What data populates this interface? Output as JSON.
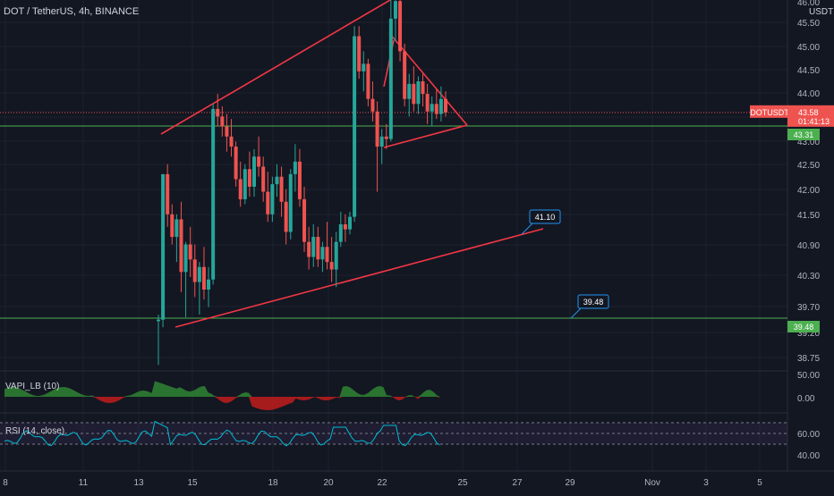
{
  "chart_data": {
    "type": "candlestick",
    "symbol_title": "DOT / TetherUS, 4h, BINANCE",
    "currency": "USDT",
    "y_ticks": [
      "46.00",
      "45.50",
      "45.00",
      "44.50",
      "44.00",
      "43.50",
      "43.00",
      "42.50",
      "42.00",
      "41.50",
      "40.90",
      "40.30",
      "39.70",
      "39.20",
      "38.75"
    ],
    "x_ticks": [
      "8",
      "11",
      "13",
      "15",
      "18",
      "20",
      "22",
      "25",
      "27",
      "29",
      "Nov",
      "3",
      "5"
    ],
    "price_tag": {
      "symbol": "DOTUSDT",
      "price": "43.58",
      "countdown": "01:41:13"
    },
    "hlines": [
      {
        "price": 43.31,
        "label": "43.31",
        "color": "#4caf50"
      },
      {
        "price": 39.48,
        "label": "39.48",
        "color": "#4caf50"
      }
    ],
    "callouts": [
      {
        "label": "41.10",
        "price": 41.1
      },
      {
        "label": "39.48",
        "price": 39.48
      }
    ],
    "trendlines_color": "#f23645",
    "candle_colors": {
      "up": "#26a69a",
      "down": "#ef5350"
    },
    "candles": [
      [
        39.42,
        39.55,
        38.55,
        39.45
      ],
      [
        39.45,
        42.35,
        39.3,
        42.35
      ],
      [
        42.35,
        42.55,
        41.3,
        41.55
      ],
      [
        41.55,
        41.75,
        40.95,
        41.1
      ],
      [
        41.1,
        41.55,
        40.6,
        41.45
      ],
      [
        41.45,
        41.8,
        40.0,
        40.4
      ],
      [
        40.4,
        41.0,
        39.5,
        40.95
      ],
      [
        40.95,
        41.3,
        40.3,
        40.65
      ],
      [
        40.65,
        40.95,
        39.9,
        40.2
      ],
      [
        40.2,
        40.6,
        39.55,
        40.5
      ],
      [
        40.5,
        40.9,
        39.85,
        40.05
      ],
      [
        40.05,
        40.5,
        39.7,
        40.25
      ],
      [
        40.25,
        43.75,
        40.15,
        43.65
      ],
      [
        43.65,
        43.95,
        43.3,
        43.5
      ],
      [
        43.5,
        43.7,
        43.1,
        43.3
      ],
      [
        43.3,
        43.55,
        42.8,
        43.1
      ],
      [
        43.1,
        43.45,
        42.7,
        42.9
      ],
      [
        42.9,
        43.0,
        42.1,
        42.25
      ],
      [
        42.25,
        42.6,
        41.7,
        41.85
      ],
      [
        41.85,
        42.55,
        41.75,
        42.45
      ],
      [
        42.45,
        42.8,
        41.9,
        42.1
      ],
      [
        42.1,
        42.85,
        41.9,
        42.7
      ],
      [
        42.7,
        43.1,
        42.3,
        42.5
      ],
      [
        42.5,
        42.7,
        41.8,
        42.0
      ],
      [
        42.0,
        42.4,
        41.4,
        41.55
      ],
      [
        41.55,
        42.3,
        41.4,
        42.15
      ],
      [
        42.15,
        42.55,
        41.9,
        42.3
      ],
      [
        42.3,
        42.5,
        41.5,
        41.8
      ],
      [
        41.8,
        42.05,
        40.95,
        41.2
      ],
      [
        41.2,
        42.45,
        41.05,
        42.35
      ],
      [
        42.35,
        42.95,
        42.0,
        42.6
      ],
      [
        42.6,
        42.85,
        41.7,
        41.85
      ],
      [
        41.85,
        42.1,
        40.8,
        41.0
      ],
      [
        41.0,
        41.3,
        40.45,
        40.7
      ],
      [
        40.7,
        41.35,
        40.5,
        41.1
      ],
      [
        41.1,
        41.3,
        40.5,
        40.65
      ],
      [
        40.65,
        41.0,
        40.4,
        40.9
      ],
      [
        40.9,
        41.4,
        40.45,
        40.6
      ],
      [
        40.6,
        41.1,
        40.2,
        40.45
      ],
      [
        40.45,
        41.2,
        40.1,
        41.0
      ],
      [
        41.0,
        41.6,
        40.9,
        41.35
      ],
      [
        41.35,
        41.55,
        41.0,
        41.25
      ],
      [
        41.25,
        41.6,
        41.15,
        41.5
      ],
      [
        41.5,
        45.3,
        41.4,
        45.1
      ],
      [
        45.1,
        45.3,
        44.25,
        44.4
      ],
      [
        44.4,
        44.8,
        44.0,
        44.55
      ],
      [
        44.55,
        44.65,
        43.7,
        43.85
      ],
      [
        43.85,
        44.2,
        43.4,
        43.6
      ],
      [
        43.6,
        43.8,
        42.0,
        42.9
      ],
      [
        42.9,
        43.25,
        42.55,
        43.1
      ],
      [
        43.1,
        43.35,
        42.85,
        43.05
      ],
      [
        43.05,
        46.0,
        43.0,
        45.45
      ],
      [
        45.45,
        45.95,
        45.0,
        45.8
      ],
      [
        45.8,
        46.2,
        44.6,
        44.8
      ],
      [
        44.8,
        44.95,
        43.7,
        43.85
      ],
      [
        43.85,
        44.35,
        43.5,
        44.15
      ],
      [
        44.15,
        44.5,
        43.6,
        43.75
      ],
      [
        43.75,
        44.3,
        43.55,
        44.2
      ],
      [
        44.2,
        44.35,
        43.7,
        43.95
      ],
      [
        43.95,
        44.15,
        43.35,
        43.6
      ],
      [
        43.6,
        43.9,
        43.3,
        43.75
      ],
      [
        43.75,
        44.05,
        43.45,
        43.55
      ],
      [
        43.55,
        44.1,
        43.4,
        43.85
      ],
      [
        43.85,
        44.0,
        43.5,
        43.58
      ]
    ],
    "indicators": [
      {
        "name": "VAPI_LB (10)",
        "ticks": [
          "50.00",
          "0.00"
        ]
      },
      {
        "name": "RSI (14, close)",
        "ticks": [
          "60.00",
          "40.00"
        ]
      }
    ]
  }
}
